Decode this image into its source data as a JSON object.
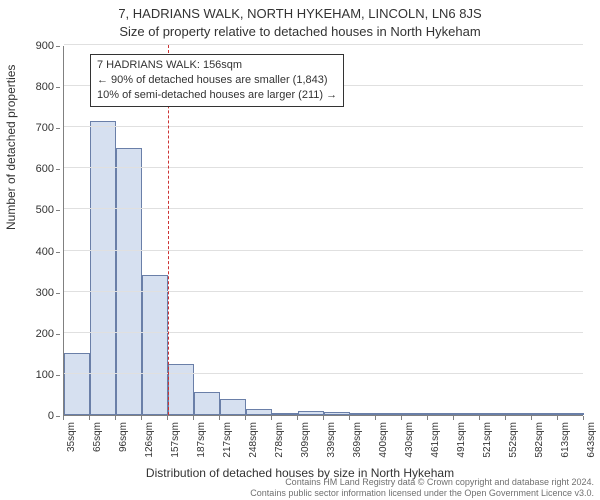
{
  "title_main": "7, HADRIANS WALK, NORTH HYKEHAM, LINCOLN, LN6 8JS",
  "title_sub": "Size of property relative to detached houses in North Hykeham",
  "chart": {
    "type": "histogram",
    "ylabel": "Number of detached properties",
    "xlabel": "Distribution of detached houses by size in North Hykeham",
    "ylim": [
      0,
      900
    ],
    "ytick_step": 100,
    "yticks": [
      0,
      100,
      200,
      300,
      400,
      500,
      600,
      700,
      800,
      900
    ],
    "xtick_labels": [
      "35sqm",
      "65sqm",
      "96sqm",
      "126sqm",
      "157sqm",
      "187sqm",
      "217sqm",
      "248sqm",
      "278sqm",
      "309sqm",
      "339sqm",
      "369sqm",
      "400sqm",
      "430sqm",
      "461sqm",
      "491sqm",
      "521sqm",
      "552sqm",
      "582sqm",
      "613sqm",
      "643sqm"
    ],
    "bars": [
      150,
      715,
      650,
      340,
      125,
      55,
      40,
      15,
      5,
      10,
      7,
      5,
      0,
      0,
      0,
      0,
      0,
      0,
      0,
      0
    ],
    "bar_fill": "#d6e0f0",
    "bar_stroke": "#6a7fa8",
    "bar_stroke_width": 1,
    "background_color": "#ffffff",
    "grid_color": "#e0e0e0",
    "axis_color": "#808080",
    "marker": {
      "position_bin_index": 4,
      "color": "#cc3333",
      "dash": "4 3",
      "width": 1
    },
    "annotation": {
      "line1": "7 HADRIANS WALK: 156sqm",
      "line2": "← 90% of detached houses are smaller (1,843)",
      "line3": "10% of semi-detached houses are larger (211) →",
      "border_color": "#333333",
      "background": "#ffffff",
      "fontsize": 11
    },
    "label_fontsize": 12,
    "tick_fontsize": 11,
    "title_fontsize": 13
  },
  "attribution": {
    "line1": "Contains HM Land Registry data © Crown copyright and database right 2024.",
    "line2": "Contains public sector information licensed under the Open Government Licence v3.0."
  }
}
